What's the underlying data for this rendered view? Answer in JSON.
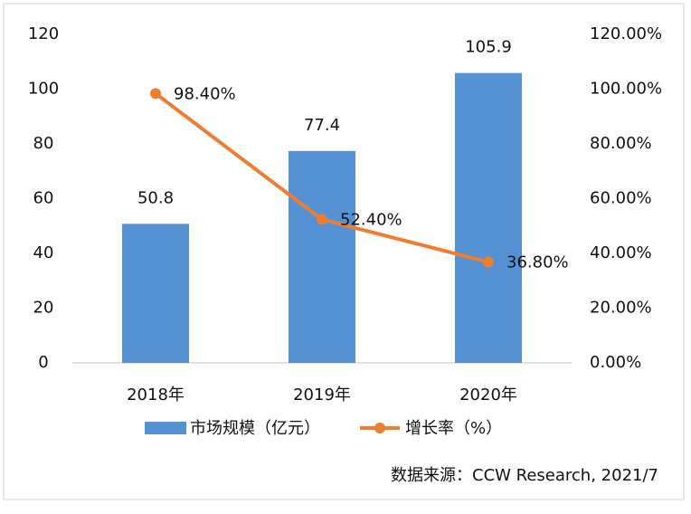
{
  "chart_data": {
    "type": "bar",
    "categories": [
      "2018年",
      "2019年",
      "2020年"
    ],
    "series": [
      {
        "name": "市场规模（亿元）",
        "type": "bar",
        "color": "#5592d3",
        "values": [
          50.8,
          77.4,
          105.9
        ]
      },
      {
        "name": "增长率（%）",
        "type": "line",
        "axis": "y2",
        "color": "#ed7d31",
        "values": [
          98.4,
          52.4,
          36.8
        ],
        "value_labels": [
          "98.40%",
          "52.40%",
          "36.80%"
        ]
      }
    ],
    "ylim": [
      0,
      120
    ],
    "yticks": [
      0,
      20,
      40,
      60,
      80,
      100,
      120
    ],
    "y2lim": [
      0,
      120
    ],
    "y2ticks": [
      {
        "value": 0,
        "label": "0.00%"
      },
      {
        "value": 20,
        "label": "20.00%"
      },
      {
        "value": 40,
        "label": "40.00%"
      },
      {
        "value": 60,
        "label": "60.00%"
      },
      {
        "value": 80,
        "label": "80.00%"
      },
      {
        "value": 100,
        "label": "100.00%"
      },
      {
        "value": 120,
        "label": "120.00%"
      }
    ],
    "grid": false,
    "source": "数据来源：CCW Research, 2021/7"
  }
}
